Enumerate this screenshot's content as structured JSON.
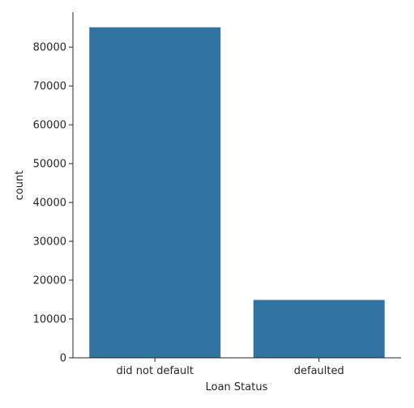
{
  "chart_data": {
    "type": "bar",
    "categories": [
      "did not default",
      "defaulted"
    ],
    "values": [
      85100,
      14900
    ],
    "xlabel": "Loan Status",
    "ylabel": "count",
    "ylim": [
      0,
      89000
    ],
    "yticks": [
      0,
      10000,
      20000,
      30000,
      40000,
      50000,
      60000,
      70000,
      80000
    ],
    "ytick_labels": [
      "0",
      "10000",
      "20000",
      "30000",
      "40000",
      "50000",
      "60000",
      "70000",
      "80000"
    ],
    "bar_color": "#3274a1",
    "grid": false,
    "legend": "none"
  }
}
